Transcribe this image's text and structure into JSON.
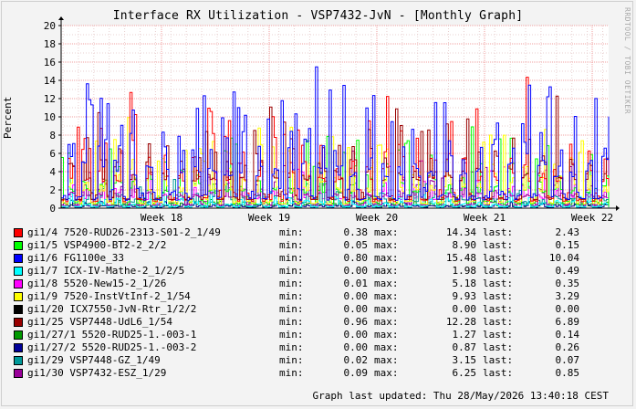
{
  "chart_data": {
    "type": "line",
    "title": "Interface RX Utilization - VSP7432-JvN - [Monthly Graph]",
    "watermark": "RRDTOOL / TOBI OETIKER",
    "ylabel": "Percent",
    "ylim": [
      0,
      20
    ],
    "yticks": [
      0,
      2,
      4,
      6,
      8,
      10,
      12,
      14,
      16,
      18,
      20
    ],
    "xticks": [
      "Week 18",
      "Week 19",
      "Week 20",
      "Week 21",
      "Week 22"
    ],
    "grid": true,
    "legend_placement": "bottom",
    "labels": {
      "min": "min:",
      "max": "max:",
      "last": "last:"
    },
    "series": [
      {
        "name": "gi1/4 7520-RUD26-2313-S01-2_1/49",
        "color": "#ff0000",
        "min": "0.38",
        "max": "14.34",
        "last": "2.43"
      },
      {
        "name": "gi1/5 VSP4900-BT2-2_2/2",
        "color": "#00ff00",
        "min": "0.05",
        "max": "8.90",
        "last": "0.15"
      },
      {
        "name": "gi1/6 FG1100e_33",
        "color": "#0000ff",
        "min": "0.80",
        "max": "15.48",
        "last": "10.04"
      },
      {
        "name": "gi1/7 ICX-IV-Mathe-2_1/2/5",
        "color": "#00ffff",
        "min": "0.00",
        "max": "1.98",
        "last": "0.49"
      },
      {
        "name": "gi1/8 5520-New15-2_1/26",
        "color": "#ff00ff",
        "min": "0.01",
        "max": "5.18",
        "last": "0.35"
      },
      {
        "name": "gi1/9 7520-InstVtInf-2_1/54",
        "color": "#ffff00",
        "min": "0.00",
        "max": "9.93",
        "last": "3.29"
      },
      {
        "name": "gi1/20 ICX7550-JvN-Rtr_1/2/2",
        "color": "#000000",
        "min": "0.00",
        "max": "0.00",
        "last": "0.00"
      },
      {
        "name": "gi1/25 VSP7448-UdL6_1/54",
        "color": "#990000",
        "min": "0.96",
        "max": "12.28",
        "last": "6.89"
      },
      {
        "name": "gi1/27/1 5520-RUD25-1.-003-1",
        "color": "#009900",
        "min": "0.00",
        "max": "1.27",
        "last": "0.14"
      },
      {
        "name": "gi1/27/2 5520-RUD25-1.-003-2",
        "color": "#000099",
        "min": "0.00",
        "max": "0.87",
        "last": "0.26"
      },
      {
        "name": "gi1/29 VSP7448-GZ_1/49",
        "color": "#009999",
        "min": "0.02",
        "max": "3.15",
        "last": "0.07"
      },
      {
        "name": "gi1/30 VSP7432-ESZ_1/29",
        "color": "#990099",
        "min": "0.09",
        "max": "6.25",
        "last": "0.85"
      }
    ]
  },
  "footer": {
    "updated": "Graph last updated: Thu 28/May/2026 13:40:18 CEST"
  }
}
